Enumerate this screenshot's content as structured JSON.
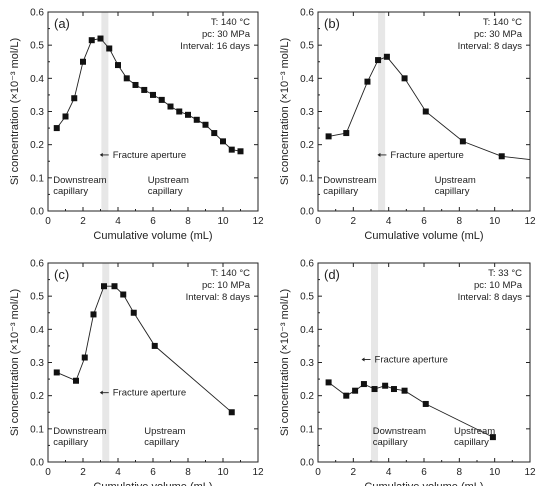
{
  "chart_data": [
    {
      "type": "line",
      "panel_label": "(a)",
      "condition_lines": [
        "T: 140 °C",
        "pc: 30 MPa",
        "Interval: 16 days"
      ],
      "xlabel": "Cumulative volume (mL)",
      "ylabel": "Si concentration (×10⁻³ mol/L)",
      "xlim": [
        0,
        12
      ],
      "ylim": [
        0,
        0.6
      ],
      "xticks": [
        0,
        2,
        4,
        6,
        8,
        10,
        12
      ],
      "yticks": [
        0.0,
        0.1,
        0.2,
        0.3,
        0.4,
        0.5,
        0.6
      ],
      "fracture_band": [
        3.05,
        3.45
      ],
      "annotation": "Fracture aperture",
      "annotation_pos": [
        3.7,
        0.16
      ],
      "region_labels": [
        {
          "lines": [
            "Downstream",
            "capillary"
          ],
          "x": 0.3,
          "y": 0.085
        },
        {
          "lines": [
            "Upstream",
            "capillary"
          ],
          "x": 5.7,
          "y": 0.085
        }
      ],
      "x": [
        0.5,
        1.0,
        1.5,
        2.0,
        2.5,
        3.0,
        3.5,
        4.0,
        4.5,
        5.0,
        5.5,
        6.0,
        6.5,
        7.0,
        7.5,
        8.0,
        8.5,
        9.0,
        9.5,
        10.0,
        10.5,
        11.0
      ],
      "y": [
        0.25,
        0.285,
        0.34,
        0.45,
        0.515,
        0.52,
        0.49,
        0.44,
        0.4,
        0.38,
        0.365,
        0.35,
        0.335,
        0.315,
        0.3,
        0.29,
        0.275,
        0.26,
        0.235,
        0.21,
        0.185,
        0.18
      ]
    },
    {
      "type": "line",
      "panel_label": "(b)",
      "condition_lines": [
        "T: 140 °C",
        "pc: 30 MPa",
        "Interval: 8 days"
      ],
      "xlabel": "Cumulative volume (mL)",
      "ylabel": "Si concentration (×10⁻³ mol/L)",
      "xlim": [
        0,
        12
      ],
      "ylim": [
        0,
        0.6
      ],
      "xticks": [
        0,
        2,
        4,
        6,
        8,
        10,
        12
      ],
      "yticks": [
        0.0,
        0.1,
        0.2,
        0.3,
        0.4,
        0.5,
        0.6
      ],
      "fracture_band": [
        3.4,
        3.8
      ],
      "annotation": "Fracture aperture",
      "annotation_pos": [
        4.1,
        0.16
      ],
      "region_labels": [
        {
          "lines": [
            "Downstream",
            "capillary"
          ],
          "x": 0.3,
          "y": 0.085
        },
        {
          "lines": [
            "Upstream",
            "capillary"
          ],
          "x": 6.6,
          "y": 0.085
        }
      ],
      "x": [
        0.6,
        1.6,
        2.8,
        3.4,
        3.9,
        4.9,
        6.1,
        8.2,
        10.4
      ],
      "y": [
        0.225,
        0.235,
        0.39,
        0.455,
        0.465,
        0.4,
        0.3,
        0.21,
        0.165
      ],
      "line_extends_to": [
        12,
        0.155
      ]
    },
    {
      "type": "line",
      "panel_label": "(c)",
      "condition_lines": [
        "T: 140 °C",
        "pc: 10 MPa",
        "Interval: 8 days"
      ],
      "xlabel": "Cumulative volume (mL)",
      "ylabel": "Si concentration (×10⁻³ mol/L)",
      "xlim": [
        0,
        12
      ],
      "ylim": [
        0,
        0.6
      ],
      "xticks": [
        0,
        2,
        4,
        6,
        8,
        10,
        12
      ],
      "yticks": [
        0.0,
        0.1,
        0.2,
        0.3,
        0.4,
        0.5,
        0.6
      ],
      "fracture_band": [
        3.1,
        3.5
      ],
      "annotation": "Fracture aperture",
      "annotation_pos": [
        3.7,
        0.2
      ],
      "region_labels": [
        {
          "lines": [
            "Downstream",
            "capillary"
          ],
          "x": 0.3,
          "y": 0.085
        },
        {
          "lines": [
            "Upstream",
            "capillary"
          ],
          "x": 5.5,
          "y": 0.085
        }
      ],
      "x": [
        0.5,
        1.6,
        2.1,
        2.6,
        3.2,
        3.8,
        4.3,
        4.9,
        6.1,
        10.5
      ],
      "y": [
        0.27,
        0.245,
        0.315,
        0.445,
        0.53,
        0.53,
        0.505,
        0.45,
        0.35,
        0.15
      ]
    },
    {
      "type": "line",
      "panel_label": "(d)",
      "condition_lines": [
        "T: 33 °C",
        "pc: 10 MPa",
        "Interval: 8 days"
      ],
      "xlabel": "Cumulative volume (mL)",
      "ylabel": "Si concentration (×10⁻³ mol/L)",
      "xlim": [
        0,
        12
      ],
      "ylim": [
        0,
        0.6
      ],
      "xticks": [
        0,
        2,
        4,
        6,
        8,
        10,
        12
      ],
      "yticks": [
        0.0,
        0.1,
        0.2,
        0.3,
        0.4,
        0.5,
        0.6
      ],
      "fracture_band": [
        3.0,
        3.4
      ],
      "annotation": "Fracture aperture",
      "annotation_pos": [
        3.2,
        0.3
      ],
      "region_labels": [
        {
          "lines": [
            "Downstream",
            "capillary"
          ],
          "x": 3.1,
          "y": 0.085
        },
        {
          "lines": [
            "Upstream",
            "capillary"
          ],
          "x": 7.7,
          "y": 0.085
        }
      ],
      "x": [
        0.6,
        1.6,
        2.1,
        2.6,
        3.2,
        3.8,
        4.3,
        4.9,
        6.1,
        9.9
      ],
      "y": [
        0.24,
        0.2,
        0.215,
        0.235,
        0.22,
        0.23,
        0.22,
        0.215,
        0.175,
        0.075
      ]
    }
  ]
}
